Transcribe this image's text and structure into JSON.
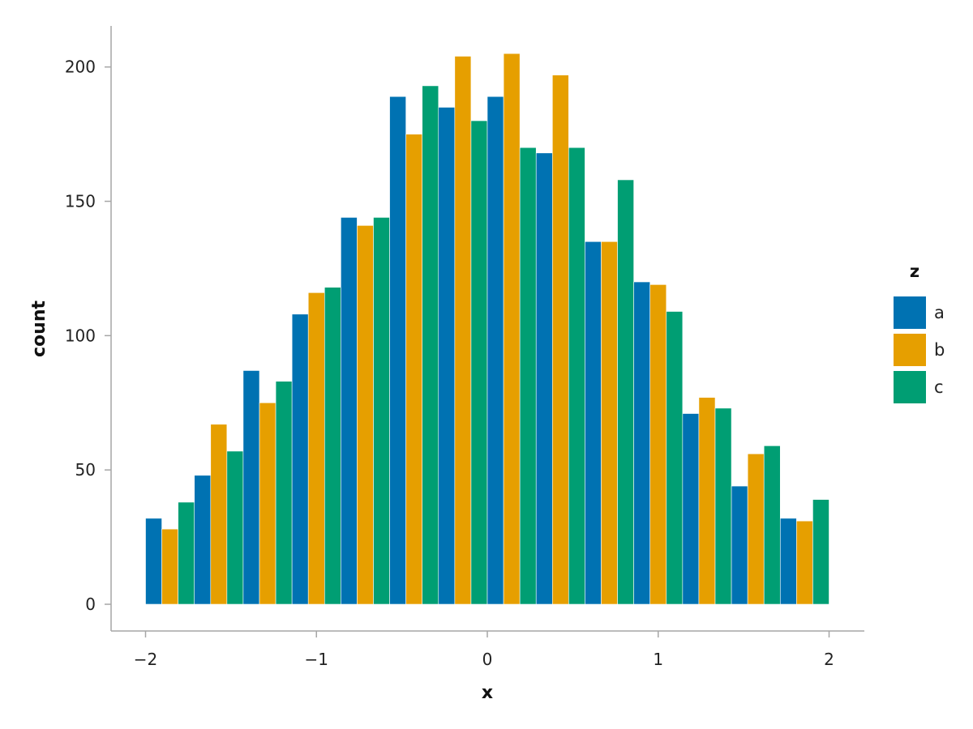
{
  "chart_data": {
    "type": "bar",
    "title": "",
    "xlabel": "x",
    "ylabel": "count",
    "x_ticks": [
      -2,
      -1,
      0,
      1,
      2
    ],
    "x_tick_labels": [
      "−2",
      "−1",
      "0",
      "1",
      "2"
    ],
    "y_ticks": [
      0,
      50,
      100,
      150,
      200
    ],
    "y_tick_labels": [
      "0",
      "50",
      "100",
      "150",
      "200"
    ],
    "xlim": [
      -2.2,
      2.2
    ],
    "ylim": [
      -10,
      215
    ],
    "grid": false,
    "legend": {
      "title": "z",
      "position": "right"
    },
    "bin_width": 0.2857,
    "bin_centers": [
      -1.8571,
      -1.5714,
      -1.2857,
      -1.0,
      -0.7143,
      -0.4286,
      -0.1429,
      0.1429,
      0.4286,
      0.7143,
      1.0,
      1.2857,
      1.5714,
      1.8571
    ],
    "series": [
      {
        "name": "a",
        "color": "#0072b2",
        "values": [
          32,
          48,
          87,
          108,
          144,
          189,
          185,
          189,
          168,
          135,
          120,
          71,
          44,
          32
        ]
      },
      {
        "name": "b",
        "color": "#e69f00",
        "values": [
          28,
          67,
          75,
          116,
          141,
          175,
          204,
          205,
          197,
          135,
          119,
          77,
          56,
          31
        ]
      },
      {
        "name": "c",
        "color": "#009e73",
        "values": [
          38,
          57,
          83,
          118,
          144,
          193,
          180,
          170,
          170,
          158,
          109,
          73,
          59,
          39
        ]
      }
    ]
  }
}
